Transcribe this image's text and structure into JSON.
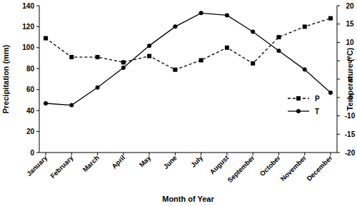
{
  "chart_data": {
    "type": "line",
    "x_label": "Month of Year",
    "y_label": "Precipitation (mm)",
    "y2_label": "Temperature (°C)",
    "categories": [
      "January",
      "February",
      "March",
      "April",
      "May",
      "June",
      "July",
      "August",
      "September",
      "October",
      "November",
      "December"
    ],
    "series": [
      {
        "name": "P",
        "color": "#000000",
        "marker": "square",
        "line_style": "dashed",
        "values": [
          109,
          91,
          91,
          86,
          92,
          79,
          88,
          100,
          85,
          110,
          120,
          128
        ]
      },
      {
        "name": "T",
        "color": "#000000",
        "marker": "circle",
        "line_style": "solid",
        "axis": "y2",
        "values": [
          -6.6,
          -7.1,
          -2.3,
          3.1,
          9.1,
          14.3,
          18.0,
          17.4,
          12.9,
          7.7,
          2.6,
          -3.7
        ]
      }
    ],
    "ylim": [
      0,
      140
    ],
    "yticks": [
      0,
      20,
      40,
      60,
      80,
      100,
      120,
      140
    ],
    "y2lim": [
      -20,
      20
    ],
    "y2ticks": [
      -20,
      -15,
      -10,
      -5,
      0,
      5,
      10,
      15,
      20
    ],
    "grid": false,
    "legend": "right"
  }
}
